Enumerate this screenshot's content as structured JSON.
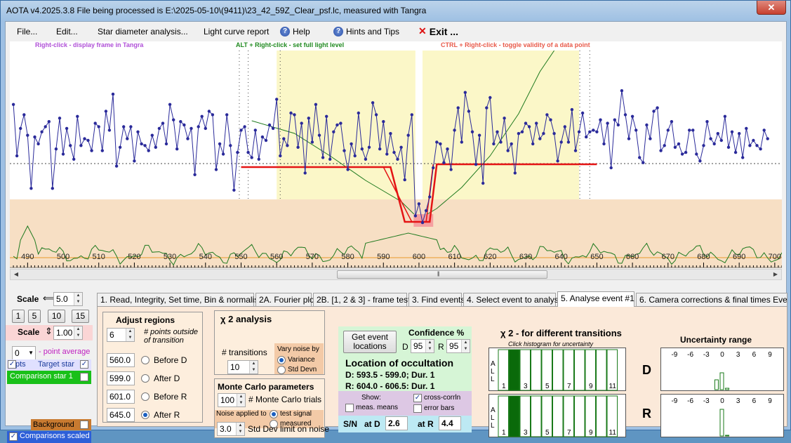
{
  "window": {
    "title": "AOTA v4.2025.3.8     File being processed is E:\\2025-05-10\\(9411)\\23_42_59Z_Clear_psf.lc, measured with Tangra",
    "close_label": "✕"
  },
  "menu": {
    "file": "File...",
    "edit": "Edit...",
    "star_diameter": "Star diameter analysis...",
    "light_curve_report": "Light curve report",
    "help": "Help",
    "hints": "Hints and Tips",
    "exit": "Exit ..."
  },
  "hints": {
    "right_click": "Right-click  -  display frame in Tangra",
    "alt_right_click": "ALT + Right-click  -  set full light level",
    "ctrl_right_click": "CTRL + Right-click  -  toggle validity of a data point"
  },
  "colors": {
    "data_line": "#2a2a9a",
    "fit_line": "#e41414",
    "comparison_line": "#1f7a1f",
    "highlight_region": "#fbf7c8",
    "lower_band": "#f7dfc4"
  },
  "chart_data": {
    "type": "line",
    "xlim": [
      485,
      702
    ],
    "x_ticks": [
      490,
      500,
      510,
      520,
      530,
      540,
      550,
      560,
      570,
      580,
      590,
      600,
      610,
      620,
      630,
      640,
      650,
      660,
      670,
      680,
      690,
      700
    ],
    "regions": [
      {
        "from": 560,
        "to": 599
      },
      {
        "from": 601,
        "to": 645
      }
    ],
    "event": {
      "D": [
        593.5,
        599.0
      ],
      "R": [
        604.0,
        606.5
      ]
    },
    "series": [
      {
        "x_start": 486,
        "x_step": 1,
        "values": [
          0.71,
          0.41,
          0.57,
          0.65,
          0.53,
          0.22,
          0.52,
          0.48,
          0.55,
          0.58,
          0.61,
          0.22,
          0.45,
          0.63,
          0.42,
          0.57,
          0.47,
          0.39,
          0.64,
          0.47,
          0.51,
          0.5,
          0.44,
          0.6,
          0.58,
          0.44,
          0.67,
          0.56,
          0.77,
          0.35,
          0.46,
          0.58,
          0.51,
          0.58,
          0.38,
          0.55,
          0.48,
          0.47,
          0.44,
          0.53,
          0.46,
          0.57,
          0.6,
          0.48,
          0.71,
          0.62,
          0.45,
          0.61,
          0.59,
          0.51,
          0.57,
          0.3,
          0.58,
          0.64,
          0.57,
          0.67,
          0.65,
          0.33,
          0.48,
          0.42,
          0.65,
          0.47,
          0.21,
          0.43,
          0.56,
          0.58,
          0.43,
          0.4,
          0.56,
          0.39,
          0.52,
          0.5,
          0.59,
          0.57,
          0.74,
          0.41,
          0.51,
          0.47,
          0.66,
          0.65,
          0.46,
          0.6,
          0.31,
          0.63,
          0.49,
          0.71,
          0.53,
          0.4,
          0.64,
          0.39,
          0.55,
          0.59,
          0.6,
          0.44,
          0.33,
          0.48,
          0.41,
          0.66,
          0.45,
          0.39,
          0.46,
          0.72,
          0.65,
          0.45,
          0.61,
          0.42,
          0.54,
          0.43,
          0.39,
          0.46,
          0.27,
          0.53,
          0.65,
          0.06,
          0.13,
          0.02,
          0.09,
          0.17,
          0.34,
          0.49,
          0.48,
          0.37,
          0.45,
          0.33,
          0.56,
          0.69,
          0.49,
          0.78,
          0.67,
          0.55,
          0.36,
          0.53,
          0.25,
          0.69,
          0.75,
          0.48,
          0.55,
          0.49,
          0.63,
          0.44,
          0.48,
          0.31,
          0.54,
          0.55,
          0.6,
          0.58,
          0.48,
          0.6,
          0.51,
          0.54,
          0.65,
          0.62,
          0.54,
          0.38,
          0.49,
          0.58,
          0.49,
          0.68,
          0.44,
          0.55,
          0.66,
          0.52,
          0.55,
          0.56,
          0.55,
          0.62,
          0.48,
          0.6,
          0.34,
          0.62,
          0.59,
          0.79,
          0.65,
          0.51,
          0.64,
          0.56,
          0.4,
          0.37,
          0.59,
          0.51,
          0.67,
          0.69,
          0.44,
          0.47,
          0.56,
          0.61,
          0.46,
          0.48,
          0.42,
          0.43,
          0.56,
          0.56,
          0.42,
          0.38,
          0.47,
          0.61,
          0.51,
          0.48,
          0.54,
          0.5,
          0.64,
          0.46,
          0.55,
          0.43,
          0.54,
          0.4,
          0.57,
          0.47,
          0.5,
          0.47,
          0.45,
          0.56,
          0.51
        ]
      }
    ]
  },
  "left_panel": {
    "scale_h_label": "Scale",
    "scale_h_value": "5.0",
    "scale_buttons": [
      "1",
      "5",
      "10",
      "15"
    ],
    "scale_v_label": "Scale",
    "scale_v_value": "1.00",
    "point_average_value": "0",
    "point_average_label": "- point average",
    "pts_label": "pts",
    "target_star_label": "Target star",
    "comparison_star_label": "Comparison star 1",
    "background_label": "Background",
    "comparisons_scaled_label": "Comparisons scaled"
  },
  "tabs": [
    "1.  Read, Integrity, Set time, Bin & normalise",
    "2A. Fourier plot",
    "2B. [1, 2 & 3] - frame test",
    "3. Find events",
    "4. Select event to analyse",
    "5. Analyse event #1",
    "6. Camera corrections & final times Event #1"
  ],
  "analyse": {
    "adjust_regions_title": "Adjust regions",
    "points_outside_value": "6",
    "points_outside_label": "# points outside of transition",
    "before_d_value": "560.0",
    "before_d_label": "Before D",
    "after_d_value": "599.0",
    "after_d_label": "After D",
    "before_r_value": "601.0",
    "before_r_label": "Before R",
    "after_r_value": "645.0",
    "after_r_label": "After R",
    "chi_title": "χ 2 analysis",
    "transitions_label": "# transitions",
    "transitions_value": "10",
    "vary_noise_label": "Vary noise by",
    "variance_label": "Variance",
    "std_devn_label": "Std Devn",
    "monte_carlo_title": "Monte Carlo parameters",
    "mc_trials_value": "100",
    "mc_trials_label": "# Monte Carlo trials",
    "noise_applied_label": "Noise applied to",
    "test_signal_label": "test signal",
    "measured_label": "measured",
    "std_dev_limit_value": "3.0",
    "std_dev_limit_label": "Std Dev limit on noise",
    "get_event_button": "Get event locations",
    "confidence_label": "Confidence %",
    "conf_d_label": "D",
    "conf_d_value": "95",
    "conf_r_label": "R",
    "conf_r_value": "95",
    "location_title": "Location of occultation",
    "location_d": "D: 593.5 - 599.0; Dur. 1",
    "location_r": "R: 604.0 - 606.5; Dur. 1",
    "show_label": "Show:",
    "meas_means_label": "meas. means",
    "cross_corrin_label": "cross-corrln",
    "error_bars_label": "error bars",
    "sn_label": "S/N",
    "at_d_label": "at D",
    "at_d_value": "2.6",
    "at_r_label": "at R",
    "at_r_value": "4.4",
    "chi_transitions_title": "χ 2 - for different transitions",
    "click_hist_label": "Click histogram for uncertainty",
    "uncertainty_title": "Uncertainty range",
    "all_label": "A L L",
    "hist_ticks": [
      "1",
      "3",
      "5",
      "7",
      "9",
      "11"
    ],
    "unc_ticks": [
      "-9",
      "-6",
      "-3",
      "0",
      "3",
      "6",
      "9"
    ],
    "d_label": "D",
    "r_label": "R"
  }
}
